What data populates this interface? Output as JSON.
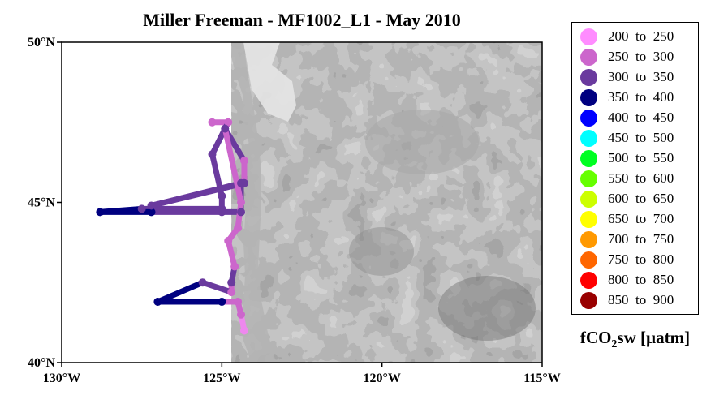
{
  "title": "Miller Freeman - MF1002_L1 - May 2010",
  "map": {
    "lat_range": [
      40,
      50
    ],
    "lon_range": [
      -130,
      -115
    ],
    "background": "bathymetry-grayscale-contours",
    "x_ticks": [
      {
        "lon": -130,
        "label": "130°W"
      },
      {
        "lon": -125,
        "label": "125°W"
      },
      {
        "lon": -120,
        "label": "120°W"
      },
      {
        "lon": -115,
        "label": "115°W"
      }
    ],
    "y_ticks": [
      {
        "lat": 50,
        "label": "50°N"
      },
      {
        "lat": 45,
        "label": "45°N"
      },
      {
        "lat": 40,
        "label": "40°N"
      }
    ]
  },
  "track": [
    {
      "lon": -125.3,
      "lat": 47.5,
      "c": "#cc66cc"
    },
    {
      "lon": -124.8,
      "lat": 47.5,
      "c": "#cc66cc"
    },
    {
      "lon": -125.3,
      "lat": 46.5,
      "c": "#6a3a9e"
    },
    {
      "lon": -125.0,
      "lat": 45.2,
      "c": "#6a3a9e"
    },
    {
      "lon": -125.0,
      "lat": 44.8,
      "c": "#6a3a9e"
    },
    {
      "lon": -127.5,
      "lat": 44.8,
      "c": "#6a3a9e"
    },
    {
      "lon": -128.8,
      "lat": 44.7,
      "c": "#000080"
    },
    {
      "lon": -127.2,
      "lat": 44.7,
      "c": "#000080"
    },
    {
      "lon": -125.0,
      "lat": 44.7,
      "c": "#6a3a9e"
    },
    {
      "lon": -124.4,
      "lat": 44.7,
      "c": "#6a3a9e"
    },
    {
      "lon": -124.4,
      "lat": 45.6,
      "c": "#6a3a9e"
    },
    {
      "lon": -127.2,
      "lat": 44.9,
      "c": "#6a3a9e"
    },
    {
      "lon": -124.3,
      "lat": 45.6,
      "c": "#6a3a9e"
    },
    {
      "lon": -124.3,
      "lat": 46.3,
      "c": "#cc66cc"
    },
    {
      "lon": -124.9,
      "lat": 47.3,
      "c": "#6a3a9e"
    },
    {
      "lon": -124.4,
      "lat": 45.0,
      "c": "#cc66cc"
    },
    {
      "lon": -124.5,
      "lat": 44.2,
      "c": "#cc66cc"
    },
    {
      "lon": -124.8,
      "lat": 43.8,
      "c": "#cc66cc"
    },
    {
      "lon": -124.6,
      "lat": 43.0,
      "c": "#cc66cc"
    },
    {
      "lon": -124.7,
      "lat": 42.5,
      "c": "#6a3a9e"
    },
    {
      "lon": -124.7,
      "lat": 42.2,
      "c": "#cc66cc"
    },
    {
      "lon": -125.6,
      "lat": 42.5,
      "c": "#6a3a9e"
    },
    {
      "lon": -127.0,
      "lat": 41.9,
      "c": "#000080"
    },
    {
      "lon": -125.0,
      "lat": 41.9,
      "c": "#000080"
    },
    {
      "lon": -124.5,
      "lat": 41.9,
      "c": "#cc66cc"
    },
    {
      "lon": -124.4,
      "lat": 41.5,
      "c": "#cc66cc"
    },
    {
      "lon": -124.3,
      "lat": 41.0,
      "c": "#ee88ee"
    }
  ],
  "legend": {
    "items": [
      {
        "label": "200  to  250",
        "color": "#ff8cff"
      },
      {
        "label": "250  to  300",
        "color": "#cc66cc"
      },
      {
        "label": "300  to  350",
        "color": "#6a3a9e"
      },
      {
        "label": "350  to  400",
        "color": "#000080"
      },
      {
        "label": "400  to  450",
        "color": "#0000ff"
      },
      {
        "label": "450  to  500",
        "color": "#00ffff"
      },
      {
        "label": "500  to  550",
        "color": "#00ff22"
      },
      {
        "label": "550  to  600",
        "color": "#66ff00"
      },
      {
        "label": "600  to  650",
        "color": "#ccff00"
      },
      {
        "label": "650  to  700",
        "color": "#ffff00"
      },
      {
        "label": "700  to  750",
        "color": "#ff9900"
      },
      {
        "label": "750  to  800",
        "color": "#ff6600"
      },
      {
        "label": "800  to  850",
        "color": "#ff0000"
      },
      {
        "label": "850  to  900",
        "color": "#990000"
      }
    ]
  },
  "units": {
    "main": "fCO",
    "sub": "2",
    "rest": "sw [µatm]"
  }
}
